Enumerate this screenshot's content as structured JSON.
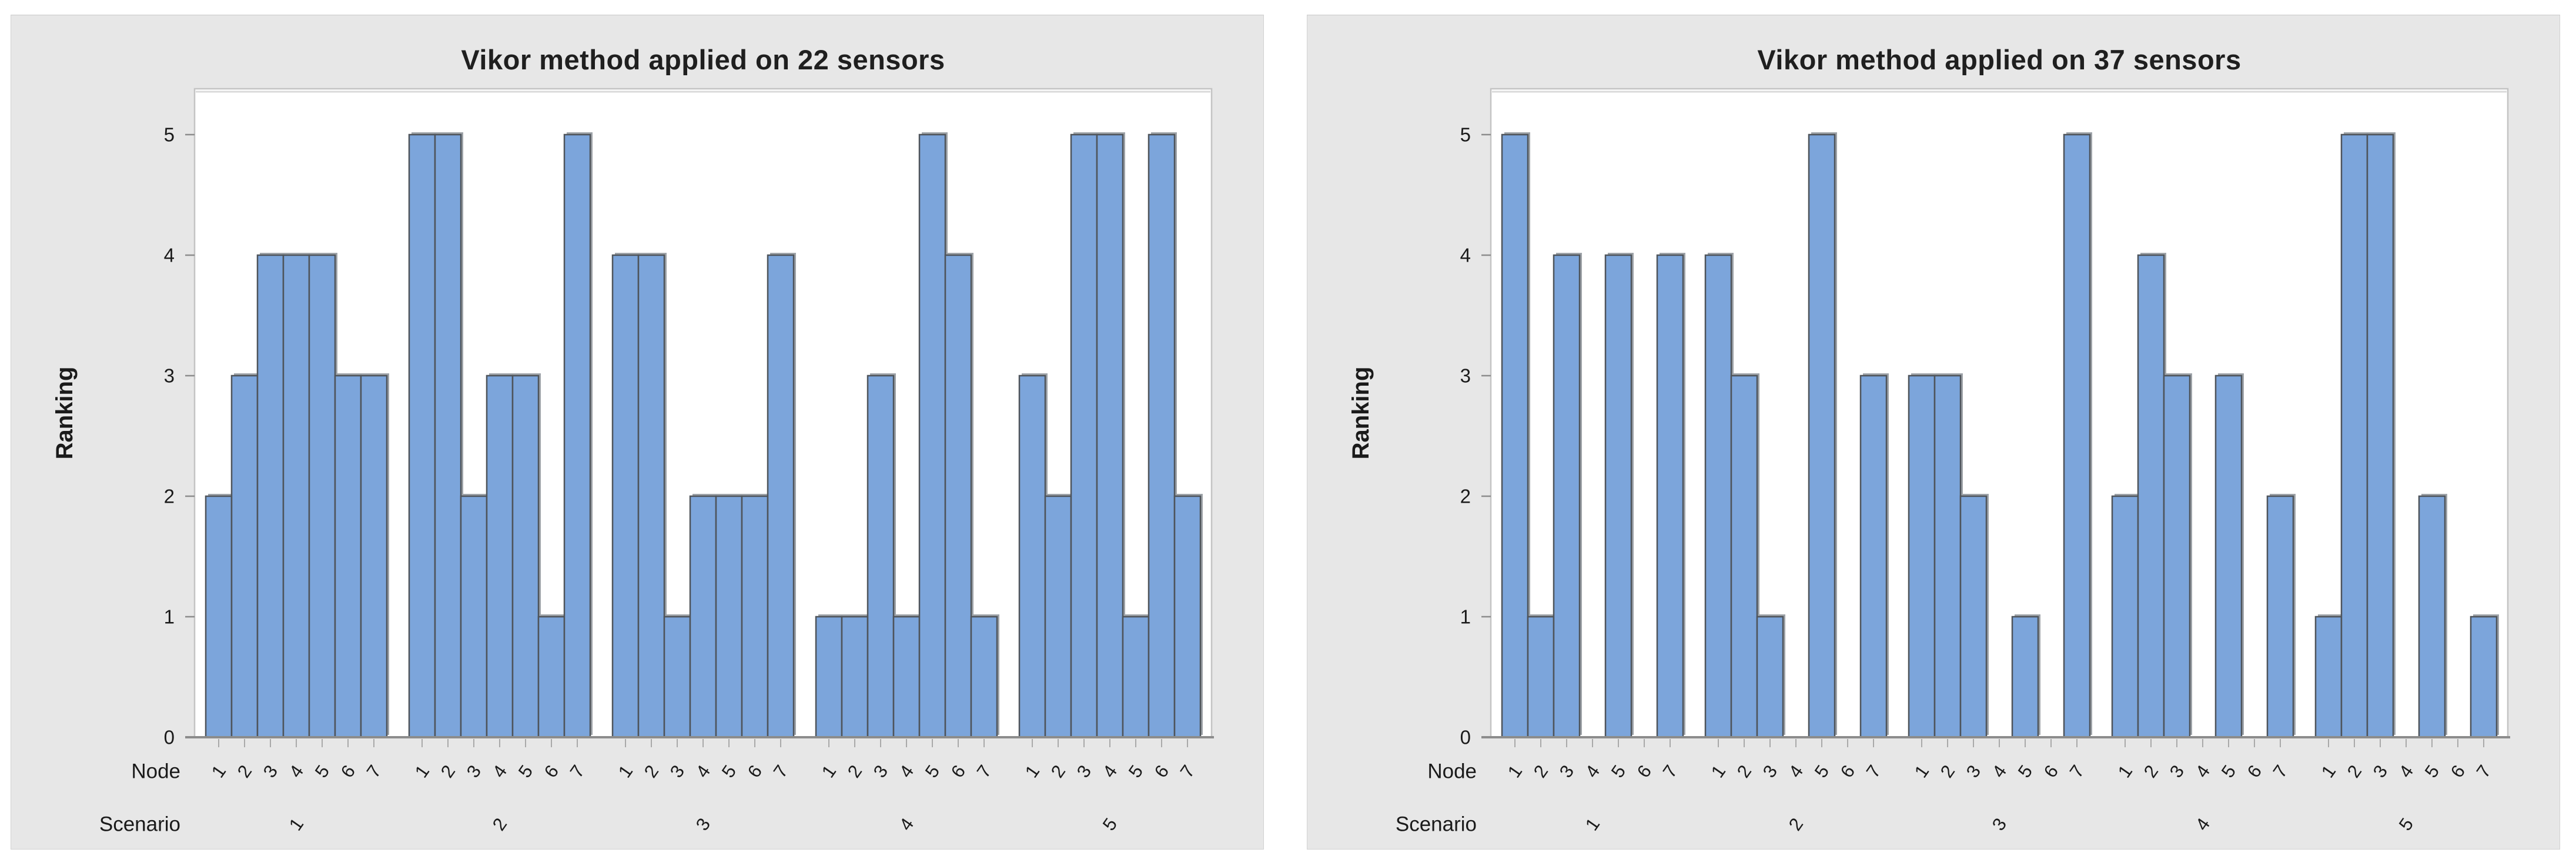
{
  "style": {
    "page_bg": "#ffffff",
    "panel_bg": "#e7e7e7",
    "panel_border": "#d2d2d2",
    "plot_bg": "#ffffff",
    "plot_frame": "#c4c4c4",
    "plot_frame_shadow": "#dadada",
    "axis_line": "#8c8c8c",
    "tick_mark": "#a9a9a9",
    "text_color": "#1a1a1a",
    "bar_fill": "#7ca5db",
    "bar_border": "#4e545b",
    "bar_shadow": "#9ea3a8"
  },
  "chart_data": [
    {
      "type": "bar",
      "title": "Vikor method applied on 22 sensors",
      "ylabel": "Ranking",
      "row_labels": {
        "node": "Node",
        "scenario": "Scenario"
      },
      "nodes": [
        "1",
        "2",
        "3",
        "4",
        "5",
        "6",
        "7"
      ],
      "scenarios": [
        "1",
        "2",
        "3",
        "4",
        "5"
      ],
      "ylim": [
        0,
        5
      ],
      "yticks": [
        "0",
        "1",
        "2",
        "3",
        "4",
        "5"
      ],
      "grid": false,
      "legend": "none",
      "series": [
        {
          "scenario": "1",
          "values": [
            2,
            3,
            4,
            4,
            4,
            3,
            3
          ]
        },
        {
          "scenario": "2",
          "values": [
            5,
            5,
            2,
            3,
            3,
            1,
            5
          ]
        },
        {
          "scenario": "3",
          "values": [
            4,
            4,
            1,
            2,
            2,
            2,
            4
          ]
        },
        {
          "scenario": "4",
          "values": [
            1,
            1,
            3,
            1,
            5,
            4,
            1
          ]
        },
        {
          "scenario": "5",
          "values": [
            3,
            2,
            5,
            5,
            1,
            5,
            2
          ]
        }
      ]
    },
    {
      "type": "bar",
      "title": "Vikor method applied on 37 sensors",
      "ylabel": "Ranking",
      "row_labels": {
        "node": "Node",
        "scenario": "Scenario"
      },
      "nodes": [
        "1",
        "2",
        "3",
        "4",
        "5",
        "6",
        "7"
      ],
      "scenarios": [
        "1",
        "2",
        "3",
        "4",
        "5"
      ],
      "ylim": [
        0,
        5
      ],
      "yticks": [
        "0",
        "1",
        "2",
        "3",
        "4",
        "5"
      ],
      "grid": false,
      "legend": "none",
      "series": [
        {
          "scenario": "1",
          "values": [
            5,
            1,
            4,
            0,
            4,
            0,
            4
          ]
        },
        {
          "scenario": "2",
          "values": [
            4,
            3,
            1,
            0,
            5,
            0,
            3
          ]
        },
        {
          "scenario": "3",
          "values": [
            3,
            3,
            2,
            0,
            1,
            0,
            5
          ]
        },
        {
          "scenario": "4",
          "values": [
            2,
            4,
            3,
            0,
            3,
            0,
            2
          ]
        },
        {
          "scenario": "5",
          "values": [
            1,
            5,
            5,
            0,
            2,
            0,
            1
          ]
        }
      ]
    }
  ]
}
